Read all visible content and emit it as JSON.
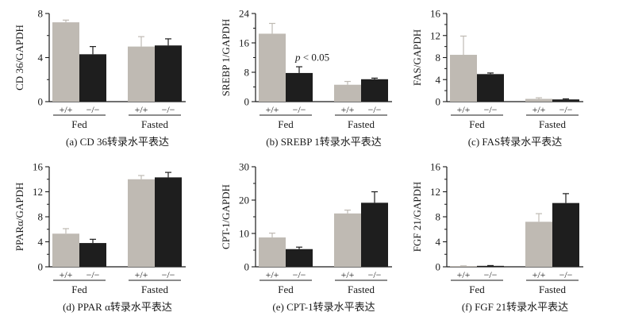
{
  "colors": {
    "wildtype": "#bfbab3",
    "knockout": "#1e1e1e",
    "axis": "#1a1a1a",
    "background": "#ffffff"
  },
  "group_labels": [
    "Fed",
    "Fasted"
  ],
  "genotype_labels": [
    "+/+",
    "−/−"
  ],
  "chart_data": [
    {
      "type": "bar",
      "id": "a",
      "caption": "(a) CD 36转录水平表达",
      "ylabel": "CD 36/GAPDH",
      "ylim": [
        0,
        8
      ],
      "yticks": [
        0,
        4,
        8
      ],
      "ytick_labels": [
        "0",
        "4",
        "8"
      ],
      "minor_yticks": [
        2,
        6
      ],
      "groups": [
        "Fed",
        "Fasted"
      ],
      "series": [
        {
          "name": "+/+",
          "values": [
            7.2,
            5.0
          ],
          "errors": [
            0.2,
            0.9
          ]
        },
        {
          "name": "−/−",
          "values": [
            4.3,
            5.1
          ],
          "errors": [
            0.7,
            0.6
          ]
        }
      ],
      "annotation": null
    },
    {
      "type": "bar",
      "id": "b",
      "caption": "(b) SREBP 1转录水平表达",
      "ylabel": "SREBP 1/GAPDH",
      "ylim": [
        0,
        24
      ],
      "yticks": [
        0,
        8,
        16,
        24
      ],
      "ytick_labels": [
        "0",
        "8",
        "16",
        "24"
      ],
      "minor_yticks": [
        4,
        12,
        20
      ],
      "groups": [
        "Fed",
        "Fasted"
      ],
      "series": [
        {
          "name": "+/+",
          "values": [
            18.5,
            4.6
          ],
          "errors": [
            2.8,
            0.9
          ]
        },
        {
          "name": "−/−",
          "values": [
            7.8,
            6.1
          ],
          "errors": [
            1.7,
            0.3
          ]
        }
      ],
      "annotation": {
        "text_italic": "p",
        "text": " < 0.05",
        "x_group": 0,
        "y": 12
      }
    },
    {
      "type": "bar",
      "id": "c",
      "caption": "(c) FAS转录水平表达",
      "ylabel": "FAS/GAPDH",
      "ylim": [
        0,
        16
      ],
      "yticks": [
        0,
        4,
        8,
        12,
        16
      ],
      "ytick_labels": [
        "0",
        "4",
        "8",
        "12",
        "16"
      ],
      "minor_yticks": [
        2,
        6,
        10,
        14
      ],
      "groups": [
        "Fed",
        "Fasted"
      ],
      "series": [
        {
          "name": "+/+",
          "values": [
            8.5,
            0.5
          ],
          "errors": [
            3.4,
            0.2
          ]
        },
        {
          "name": "−/−",
          "values": [
            5.0,
            0.4
          ],
          "errors": [
            0.2,
            0.1
          ]
        }
      ],
      "annotation": null
    },
    {
      "type": "bar",
      "id": "d",
      "caption": "(d) PPAR α转录水平表达",
      "ylabel": "PPARα/GAPDH",
      "ylim": [
        0,
        16
      ],
      "yticks": [
        0,
        4,
        8,
        12,
        16
      ],
      "ytick_labels": [
        "0",
        "4",
        "8",
        "12",
        "16"
      ],
      "minor_yticks": [
        2,
        6,
        10,
        14
      ],
      "groups": [
        "Fed",
        "Fasted"
      ],
      "series": [
        {
          "name": "+/+",
          "values": [
            5.3,
            14.0
          ],
          "errors": [
            0.8,
            0.6
          ]
        },
        {
          "name": "−/−",
          "values": [
            3.8,
            14.3
          ],
          "errors": [
            0.6,
            0.8
          ]
        }
      ],
      "annotation": null
    },
    {
      "type": "bar",
      "id": "e",
      "caption": "(e) CPT-1转录水平表达",
      "ylabel": "CPT-1/GAPDH",
      "ylim": [
        0,
        30
      ],
      "yticks": [
        0,
        10,
        20,
        30
      ],
      "ytick_labels": [
        "0",
        "10",
        "20",
        "30"
      ],
      "minor_yticks": [
        5,
        15,
        25
      ],
      "groups": [
        "Fed",
        "Fasted"
      ],
      "series": [
        {
          "name": "+/+",
          "values": [
            8.8,
            16.0
          ],
          "errors": [
            1.3,
            1.0
          ]
        },
        {
          "name": "−/−",
          "values": [
            5.3,
            19.2
          ],
          "errors": [
            0.6,
            3.3
          ]
        }
      ],
      "annotation": null
    },
    {
      "type": "bar",
      "id": "f",
      "caption": "(f) FGF 21转录水平表达",
      "ylabel": "FGF 21/GAPDH",
      "ylim": [
        0,
        16
      ],
      "yticks": [
        0,
        4,
        8,
        12,
        16
      ],
      "ytick_labels": [
        "0",
        "4",
        "8",
        "12",
        "16"
      ],
      "minor_yticks": [
        2,
        6,
        10,
        14
      ],
      "groups": [
        "Fed",
        "Fasted"
      ],
      "series": [
        {
          "name": "+/+",
          "values": [
            0.1,
            7.2
          ],
          "errors": [
            0.05,
            1.3
          ]
        },
        {
          "name": "−/−",
          "values": [
            0.15,
            10.2
          ],
          "errors": [
            0.05,
            1.5
          ]
        }
      ],
      "annotation": null
    }
  ]
}
